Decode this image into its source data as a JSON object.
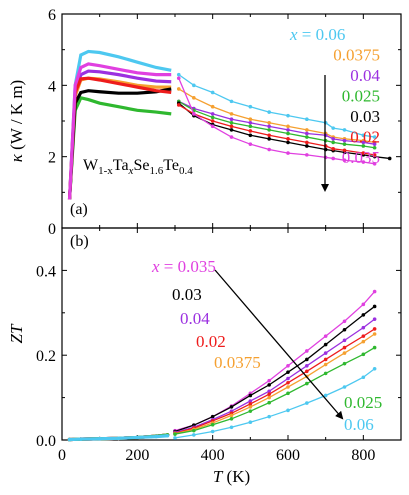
{
  "chart_data": [
    {
      "type": "line",
      "panel_label": "(a)",
      "ylabel_parts": [
        "κ",
        "(W / K m)"
      ],
      "formula": {
        "a": "W",
        "b": "1-x",
        "c": "Ta",
        "d": "x",
        "e": "Se",
        "f": "1.6",
        "g": "Te",
        "h": "0.4"
      },
      "ylim": [
        0,
        6
      ],
      "yticks": [
        0,
        2,
        4,
        6
      ],
      "ytick_labels": [
        "0",
        "2",
        "4",
        "6"
      ],
      "xlim": [
        0,
        900
      ],
      "legend_prefix": "x = ",
      "arrow_direction": "down",
      "series": [
        {
          "name": "0.06",
          "color": "#4dc8f0",
          "x": [
            20,
            35,
            50,
            70,
            100,
            150,
            200,
            250,
            290,
            310,
            350,
            400,
            450,
            500,
            550,
            600,
            650,
            700,
            720,
            750,
            800,
            830
          ],
          "y": [
            0.8,
            4.0,
            4.85,
            4.95,
            4.92,
            4.8,
            4.65,
            4.5,
            4.42,
            4.3,
            4.0,
            3.8,
            3.55,
            3.4,
            3.25,
            3.15,
            3.05,
            2.95,
            2.8,
            2.75,
            2.6,
            2.55
          ]
        },
        {
          "name": "0.0375",
          "color": "#f5a030",
          "x": [
            20,
            35,
            50,
            70,
            100,
            150,
            200,
            250,
            290,
            310,
            350,
            400,
            450,
            500,
            550,
            600,
            650,
            700,
            720,
            750,
            800,
            830
          ],
          "y": [
            0.8,
            3.7,
            4.15,
            4.2,
            4.18,
            4.1,
            4.0,
            3.95,
            3.95,
            3.9,
            3.65,
            3.4,
            3.2,
            3.05,
            2.95,
            2.85,
            2.75,
            2.65,
            2.55,
            2.5,
            2.45,
            2.4
          ]
        },
        {
          "name": "0.04",
          "color": "#9b30e0",
          "x": [
            20,
            35,
            50,
            70,
            100,
            150,
            200,
            250,
            290,
            310,
            350,
            400,
            450,
            500,
            550,
            600,
            650,
            700,
            720,
            750,
            800,
            830
          ],
          "y": [
            0.8,
            3.8,
            4.3,
            4.4,
            4.38,
            4.3,
            4.2,
            4.12,
            4.1,
            3.55,
            3.35,
            3.2,
            3.05,
            2.95,
            2.85,
            2.75,
            2.65,
            2.6,
            2.5,
            2.45,
            2.4,
            2.35
          ]
        },
        {
          "name": "0.025",
          "color": "#2fb82f",
          "x": [
            20,
            35,
            50,
            70,
            100,
            150,
            200,
            250,
            290,
            310,
            350,
            400,
            450,
            500,
            550,
            600,
            650,
            700,
            720,
            750,
            800,
            830
          ],
          "y": [
            0.8,
            3.3,
            3.65,
            3.6,
            3.5,
            3.4,
            3.3,
            3.25,
            3.2,
            3.55,
            3.3,
            3.1,
            2.95,
            2.85,
            2.75,
            2.65,
            2.55,
            2.45,
            2.4,
            2.35,
            2.3,
            2.25
          ]
        },
        {
          "name": "0.03",
          "color": "#000000",
          "x": [
            20,
            35,
            50,
            70,
            100,
            150,
            200,
            250,
            290,
            310,
            350,
            400,
            450,
            500,
            550,
            600,
            650,
            700,
            720,
            750,
            800,
            830,
            870
          ],
          "y": [
            0.8,
            3.5,
            3.8,
            3.85,
            3.82,
            3.78,
            3.78,
            3.82,
            3.9,
            3.5,
            3.15,
            2.9,
            2.75,
            2.6,
            2.5,
            2.4,
            2.3,
            2.2,
            2.17,
            2.12,
            2.05,
            2.0,
            1.95
          ]
        },
        {
          "name": "0.02",
          "color": "#ee1c1c",
          "x": [
            20,
            35,
            50,
            70,
            100,
            150,
            200,
            250,
            290,
            310,
            350,
            400,
            450,
            500,
            550,
            600,
            650,
            700,
            720,
            750,
            800,
            830
          ],
          "y": [
            0.8,
            3.8,
            4.18,
            4.2,
            4.15,
            4.05,
            3.95,
            3.85,
            3.8,
            3.45,
            3.2,
            3.0,
            2.85,
            2.72,
            2.6,
            2.5,
            2.4,
            2.3,
            2.22,
            2.18,
            2.1,
            2.05
          ]
        },
        {
          "name": "0.035",
          "color": "#e040e0",
          "x": [
            20,
            35,
            50,
            70,
            100,
            150,
            200,
            250,
            290,
            310,
            350,
            400,
            450,
            500,
            550,
            600,
            650,
            700,
            720,
            750,
            800,
            830
          ],
          "y": [
            0.8,
            4.0,
            4.5,
            4.6,
            4.55,
            4.45,
            4.35,
            4.3,
            4.3,
            4.2,
            3.2,
            2.85,
            2.55,
            2.35,
            2.2,
            2.1,
            2.05,
            1.98,
            1.95,
            1.9,
            1.85,
            1.8
          ]
        }
      ]
    },
    {
      "type": "line",
      "panel_label": "(b)",
      "ylabel_parts": [
        "ZT"
      ],
      "xlabel_parts": [
        "T",
        " (K)"
      ],
      "ylim": [
        0,
        0.5
      ],
      "yticks": [
        0,
        0.2,
        0.4
      ],
      "ytick_labels": [
        "0.0",
        "0.2",
        "0.4"
      ],
      "xlim": [
        0,
        900
      ],
      "xticks": [
        0,
        200,
        400,
        600,
        800
      ],
      "xtick_labels": [
        "0",
        "200",
        "400",
        "600",
        "800"
      ],
      "legend_prefix": "x = ",
      "arrow_direction": "down",
      "series": [
        {
          "name": "0.035",
          "color": "#e040e0",
          "x": [
            20,
            50,
            100,
            150,
            200,
            250,
            280,
            300,
            350,
            400,
            450,
            500,
            550,
            600,
            650,
            700,
            750,
            800,
            830
          ],
          "y": [
            0.001,
            0.002,
            0.003,
            0.004,
            0.006,
            0.009,
            0.012,
            0.022,
            0.035,
            0.055,
            0.08,
            0.11,
            0.14,
            0.175,
            0.21,
            0.245,
            0.28,
            0.32,
            0.35
          ]
        },
        {
          "name": "0.03",
          "color": "#000000",
          "x": [
            20,
            50,
            100,
            150,
            200,
            250,
            280,
            300,
            350,
            400,
            450,
            500,
            550,
            600,
            650,
            700,
            750,
            800,
            830
          ],
          "y": [
            0.001,
            0.002,
            0.003,
            0.004,
            0.006,
            0.009,
            0.012,
            0.02,
            0.035,
            0.055,
            0.078,
            0.105,
            0.13,
            0.16,
            0.19,
            0.225,
            0.26,
            0.295,
            0.315
          ]
        },
        {
          "name": "0.04",
          "color": "#9b30e0",
          "x": [
            20,
            50,
            100,
            150,
            200,
            250,
            280,
            300,
            350,
            400,
            450,
            500,
            550,
            600,
            650,
            700,
            750,
            800,
            830
          ],
          "y": [
            0.001,
            0.002,
            0.003,
            0.004,
            0.006,
            0.009,
            0.012,
            0.018,
            0.03,
            0.048,
            0.068,
            0.092,
            0.115,
            0.145,
            0.175,
            0.205,
            0.235,
            0.265,
            0.285
          ]
        },
        {
          "name": "0.02",
          "color": "#ee1c1c",
          "x": [
            20,
            50,
            100,
            150,
            200,
            250,
            280,
            300,
            350,
            400,
            450,
            500,
            550,
            600,
            650,
            700,
            750,
            800,
            830
          ],
          "y": [
            0.001,
            0.002,
            0.003,
            0.004,
            0.006,
            0.009,
            0.012,
            0.016,
            0.028,
            0.045,
            0.063,
            0.085,
            0.108,
            0.135,
            0.162,
            0.19,
            0.218,
            0.245,
            0.262
          ]
        },
        {
          "name": "0.0375",
          "color": "#f5a030",
          "x": [
            20,
            50,
            100,
            150,
            200,
            250,
            280,
            300,
            350,
            400,
            450,
            500,
            550,
            600,
            650,
            700,
            750,
            800,
            830
          ],
          "y": [
            0.001,
            0.002,
            0.003,
            0.004,
            0.006,
            0.009,
            0.012,
            0.015,
            0.025,
            0.04,
            0.058,
            0.078,
            0.1,
            0.125,
            0.15,
            0.178,
            0.205,
            0.232,
            0.25
          ]
        },
        {
          "name": "0.025",
          "color": "#2fb82f",
          "x": [
            20,
            50,
            100,
            150,
            200,
            250,
            280,
            300,
            350,
            400,
            450,
            500,
            550,
            600,
            650,
            700,
            750,
            800,
            830
          ],
          "y": [
            0.001,
            0.002,
            0.003,
            0.004,
            0.006,
            0.009,
            0.012,
            0.014,
            0.022,
            0.036,
            0.05,
            0.068,
            0.088,
            0.11,
            0.133,
            0.157,
            0.18,
            0.202,
            0.218
          ]
        },
        {
          "name": "0.06",
          "color": "#4dc8f0",
          "x": [
            20,
            50,
            100,
            150,
            200,
            250,
            280,
            300,
            350,
            400,
            450,
            500,
            550,
            600,
            650,
            700,
            750,
            800,
            830
          ],
          "y": [
            0.001,
            0.002,
            0.003,
            0.004,
            0.006,
            0.008,
            0.01,
            0.005,
            0.012,
            0.02,
            0.03,
            0.042,
            0.055,
            0.07,
            0.087,
            0.105,
            0.125,
            0.148,
            0.168
          ]
        }
      ]
    }
  ]
}
